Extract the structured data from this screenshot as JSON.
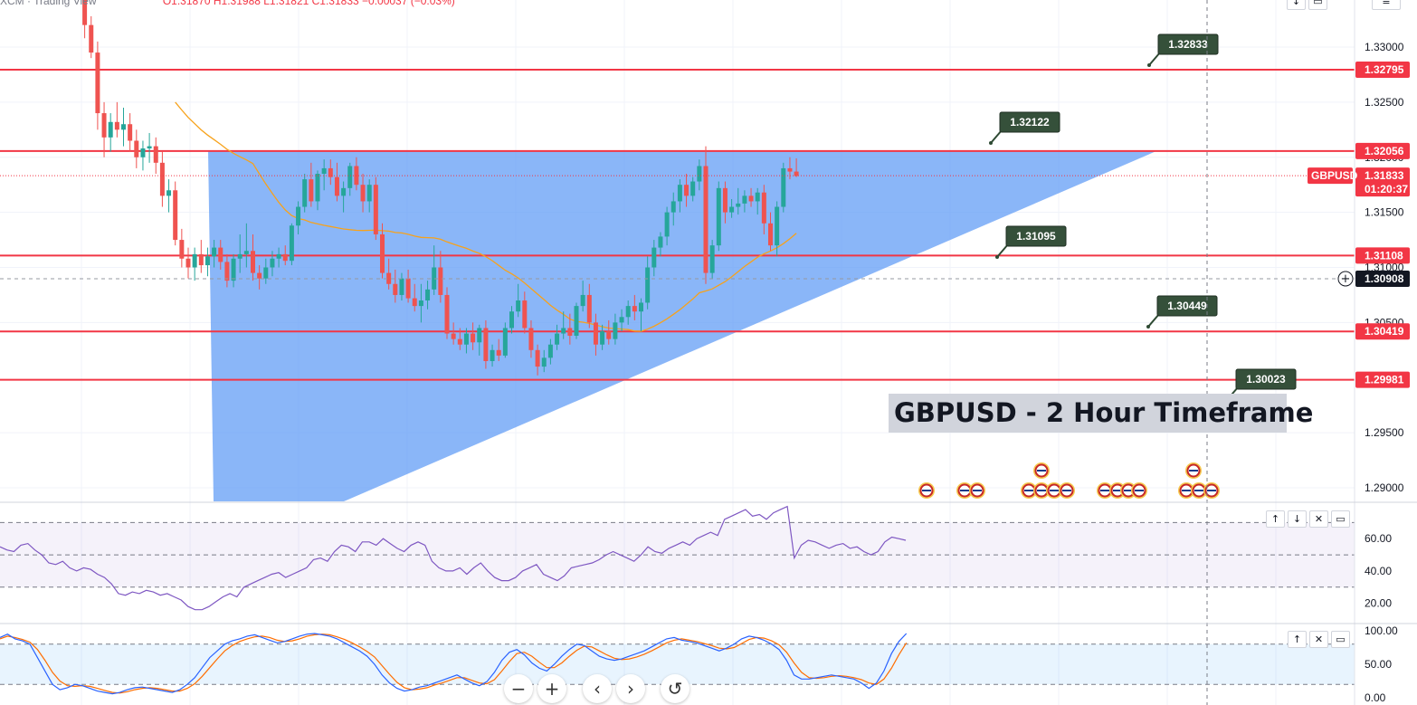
{
  "header": {
    "symbol_text": "XCM · Trading View",
    "ohlc_text": "O1.31870 H1.31988 L1.31821 C1.31833 −0.00037 (−0.03%)"
  },
  "chart_data": {
    "type": "candlestick",
    "symbol": "GBPUSD",
    "annotation": "GBPUSD - 2  Hour Timeframe",
    "price_axis": {
      "range": [
        1.2885,
        1.338
      ],
      "ticks": [
        "1.33000",
        "1.32500",
        "1.32000",
        "1.31500",
        "1.31000",
        "1.30500",
        "1.29500",
        "1.29000"
      ]
    },
    "current_price": {
      "value": 1.31833,
      "label": "1.31833",
      "countdown": "01:20:37",
      "symbol_tag": "GBPUSD"
    },
    "crosshair_price": {
      "value": 1.30908,
      "label": "1.30908"
    },
    "horizontal_levels": [
      {
        "value": 1.32795,
        "label": "1.32795"
      },
      {
        "value": 1.32056,
        "label": "1.32056"
      },
      {
        "value": 1.31108,
        "label": "1.31108"
      },
      {
        "value": 1.30419,
        "label": "1.30419"
      },
      {
        "value": 1.29981,
        "label": "1.29981"
      }
    ],
    "callouts": [
      {
        "label": "1.32833",
        "value": 1.32833
      },
      {
        "label": "1.32122",
        "value": 1.32122
      },
      {
        "label": "1.31095",
        "value": 1.31095
      },
      {
        "label": "1.30449",
        "value": 1.30449
      },
      {
        "label": "1.30023",
        "value": 1.30023
      }
    ],
    "pattern": "ascending-triangle",
    "moving_average": "orange line",
    "candles": [
      [
        1.339,
        1.3402,
        1.3372,
        1.338
      ],
      [
        1.338,
        1.3398,
        1.3368,
        1.3385
      ],
      [
        1.3385,
        1.34,
        1.337,
        1.3375
      ],
      [
        1.3375,
        1.3392,
        1.336,
        1.3362
      ],
      [
        1.3362,
        1.3372,
        1.3308,
        1.332
      ],
      [
        1.332,
        1.3328,
        1.329,
        1.3295
      ],
      [
        1.3295,
        1.3305,
        1.3225,
        1.324
      ],
      [
        1.324,
        1.325,
        1.32,
        1.3218
      ],
      [
        1.3218,
        1.324,
        1.3205,
        1.3232
      ],
      [
        1.3232,
        1.325,
        1.3218,
        1.3225
      ],
      [
        1.3225,
        1.3245,
        1.321,
        1.323
      ],
      [
        1.323,
        1.324,
        1.3205,
        1.3215
      ],
      [
        1.3215,
        1.3225,
        1.319,
        1.32
      ],
      [
        1.32,
        1.3215,
        1.3188,
        1.3208
      ],
      [
        1.3208,
        1.3222,
        1.3195,
        1.321
      ],
      [
        1.321,
        1.3218,
        1.3185,
        1.3195
      ],
      [
        1.3195,
        1.3205,
        1.3155,
        1.3165
      ],
      [
        1.3165,
        1.318,
        1.315,
        1.317
      ],
      [
        1.317,
        1.3178,
        1.312,
        1.3125
      ],
      [
        1.3125,
        1.3135,
        1.31,
        1.3108
      ],
      [
        1.3108,
        1.3118,
        1.309,
        1.31
      ],
      [
        1.31,
        1.3118,
        1.3088,
        1.3112
      ],
      [
        1.3112,
        1.3125,
        1.3095,
        1.3102
      ],
      [
        1.3102,
        1.3118,
        1.3092,
        1.311
      ],
      [
        1.311,
        1.3125,
        1.31,
        1.3118
      ],
      [
        1.3118,
        1.3125,
        1.3098,
        1.3105
      ],
      [
        1.3105,
        1.3112,
        1.3082,
        1.3088
      ],
      [
        1.3088,
        1.3112,
        1.3082,
        1.3108
      ],
      [
        1.3108,
        1.313,
        1.3095,
        1.3112
      ],
      [
        1.3112,
        1.314,
        1.31,
        1.3115
      ],
      [
        1.3115,
        1.313,
        1.3088,
        1.3095
      ],
      [
        1.3095,
        1.3102,
        1.308,
        1.309
      ],
      [
        1.309,
        1.3108,
        1.3085,
        1.31
      ],
      [
        1.31,
        1.3115,
        1.3092,
        1.3108
      ],
      [
        1.3108,
        1.3118,
        1.31,
        1.3112
      ],
      [
        1.3112,
        1.312,
        1.3102,
        1.3106
      ],
      [
        1.3106,
        1.314,
        1.3102,
        1.3138
      ],
      [
        1.3138,
        1.316,
        1.313,
        1.3155
      ],
      [
        1.3155,
        1.3185,
        1.315,
        1.318
      ],
      [
        1.318,
        1.3195,
        1.3155,
        1.316
      ],
      [
        1.316,
        1.3188,
        1.3152,
        1.3185
      ],
      [
        1.3185,
        1.3198,
        1.317,
        1.319
      ],
      [
        1.319,
        1.3198,
        1.3175,
        1.3182
      ],
      [
        1.3182,
        1.3195,
        1.316,
        1.3165
      ],
      [
        1.3165,
        1.3178,
        1.315,
        1.3172
      ],
      [
        1.3172,
        1.3195,
        1.3165,
        1.3192
      ],
      [
        1.3192,
        1.32,
        1.317,
        1.3175
      ],
      [
        1.3175,
        1.3185,
        1.315,
        1.316
      ],
      [
        1.316,
        1.318,
        1.315,
        1.3175
      ],
      [
        1.3175,
        1.3182,
        1.3125,
        1.313
      ],
      [
        1.313,
        1.314,
        1.309,
        1.3095
      ],
      [
        1.3095,
        1.3108,
        1.308,
        1.3085
      ],
      [
        1.3085,
        1.3098,
        1.3068,
        1.3075
      ],
      [
        1.3075,
        1.3095,
        1.307,
        1.309
      ],
      [
        1.309,
        1.3098,
        1.3068,
        1.3072
      ],
      [
        1.3072,
        1.3085,
        1.306,
        1.3065
      ],
      [
        1.3065,
        1.3085,
        1.305,
        1.307
      ],
      [
        1.307,
        1.3088,
        1.3062,
        1.308
      ],
      [
        1.308,
        1.312,
        1.3075,
        1.31
      ],
      [
        1.31,
        1.3115,
        1.3068,
        1.3075
      ],
      [
        1.3075,
        1.3082,
        1.3035,
        1.304
      ],
      [
        1.304,
        1.305,
        1.303,
        1.3035
      ],
      [
        1.3035,
        1.3045,
        1.3025,
        1.303
      ],
      [
        1.303,
        1.3045,
        1.3022,
        1.304
      ],
      [
        1.304,
        1.305,
        1.3025,
        1.3032
      ],
      [
        1.3032,
        1.3048,
        1.302,
        1.3045
      ],
      [
        1.3045,
        1.3052,
        1.3008,
        1.3015
      ],
      [
        1.3015,
        1.303,
        1.301,
        1.3025
      ],
      [
        1.3025,
        1.3035,
        1.3015,
        1.302
      ],
      [
        1.302,
        1.305,
        1.3018,
        1.3045
      ],
      [
        1.3045,
        1.3065,
        1.304,
        1.306
      ],
      [
        1.306,
        1.3085,
        1.3055,
        1.307
      ],
      [
        1.307,
        1.3078,
        1.304,
        1.3045
      ],
      [
        1.3045,
        1.3052,
        1.3018,
        1.3025
      ],
      [
        1.3025,
        1.303,
        1.3002,
        1.301
      ],
      [
        1.301,
        1.3025,
        1.3005,
        1.3018
      ],
      [
        1.3018,
        1.3035,
        1.3012,
        1.303
      ],
      [
        1.303,
        1.3048,
        1.3025,
        1.304
      ],
      [
        1.304,
        1.306,
        1.3035,
        1.3045
      ],
      [
        1.3045,
        1.3058,
        1.303,
        1.3038
      ],
      [
        1.3038,
        1.3068,
        1.3035,
        1.3065
      ],
      [
        1.3065,
        1.3088,
        1.306,
        1.3075
      ],
      [
        1.3075,
        1.3085,
        1.3045,
        1.305
      ],
      [
        1.305,
        1.3058,
        1.302,
        1.303
      ],
      [
        1.303,
        1.3048,
        1.3025,
        1.3042
      ],
      [
        1.3042,
        1.3052,
        1.303,
        1.3035
      ],
      [
        1.3035,
        1.3058,
        1.303,
        1.305
      ],
      [
        1.305,
        1.3062,
        1.3042,
        1.3055
      ],
      [
        1.3055,
        1.307,
        1.3048,
        1.3065
      ],
      [
        1.3065,
        1.3075,
        1.3052,
        1.306
      ],
      [
        1.306,
        1.3072,
        1.3042,
        1.3068
      ],
      [
        1.3068,
        1.311,
        1.3062,
        1.31
      ],
      [
        1.31,
        1.3125,
        1.3092,
        1.3118
      ],
      [
        1.3118,
        1.3132,
        1.311,
        1.3128
      ],
      [
        1.3128,
        1.3155,
        1.312,
        1.315
      ],
      [
        1.315,
        1.3168,
        1.3138,
        1.316
      ],
      [
        1.316,
        1.318,
        1.315,
        1.3175
      ],
      [
        1.3175,
        1.3185,
        1.3155,
        1.3165
      ],
      [
        1.3165,
        1.3182,
        1.316,
        1.3178
      ],
      [
        1.3178,
        1.3198,
        1.317,
        1.3192
      ],
      [
        1.3192,
        1.321,
        1.3085,
        1.3095
      ],
      [
        1.3095,
        1.3125,
        1.309,
        1.312
      ],
      [
        1.312,
        1.3178,
        1.3115,
        1.3172
      ],
      [
        1.3172,
        1.3178,
        1.314,
        1.315
      ],
      [
        1.315,
        1.3162,
        1.3145,
        1.3155
      ],
      [
        1.3155,
        1.3172,
        1.3148,
        1.3158
      ],
      [
        1.3158,
        1.317,
        1.315,
        1.3165
      ],
      [
        1.3165,
        1.3172,
        1.3155,
        1.316
      ],
      [
        1.316,
        1.3172,
        1.3148,
        1.3168
      ],
      [
        1.3168,
        1.3175,
        1.313,
        1.314
      ],
      [
        1.314,
        1.315,
        1.3115,
        1.312
      ],
      [
        1.312,
        1.316,
        1.311,
        1.3155
      ],
      [
        1.3155,
        1.3195,
        1.315,
        1.319
      ],
      [
        1.319,
        1.32,
        1.318,
        1.3187
      ],
      [
        1.3187,
        1.3199,
        1.3182,
        1.3183
      ]
    ]
  },
  "rsi": {
    "ticks": [
      "60.00",
      "40.00",
      "20.00"
    ],
    "range": [
      8,
      82
    ],
    "upper": 70,
    "lower": 30,
    "values": [
      55,
      53,
      52,
      56,
      57,
      53,
      50,
      45,
      44,
      46,
      42,
      40,
      42,
      41,
      38,
      36,
      32,
      26,
      25,
      27,
      26,
      28,
      27,
      25,
      26,
      24,
      22,
      18,
      16,
      16,
      18,
      21,
      24,
      26,
      24,
      30,
      32,
      34,
      36,
      38,
      39,
      36,
      38,
      40,
      42,
      47,
      48,
      46,
      52,
      56,
      55,
      52,
      58,
      58,
      56,
      60,
      57,
      54,
      52,
      56,
      58,
      56,
      46,
      42,
      40,
      40,
      42,
      38,
      42,
      45,
      40,
      36,
      34,
      34,
      36,
      40,
      42,
      44,
      38,
      36,
      34,
      37,
      42,
      43,
      44,
      45,
      47,
      50,
      52,
      50,
      48,
      46,
      50,
      55,
      52,
      51,
      54,
      56,
      58,
      56,
      60,
      62,
      64,
      62,
      72,
      74,
      76,
      78,
      74,
      75,
      72,
      76,
      78,
      80,
      48,
      56,
      59,
      58,
      56,
      54,
      56,
      57,
      54,
      55,
      52,
      50,
      52,
      58,
      61,
      60,
      59
    ]
  },
  "stoch": {
    "ticks": [
      "100.00",
      "50.00",
      "0.00"
    ],
    "range": [
      0,
      105
    ],
    "upper": 80,
    "lower": 20,
    "k": [
      90,
      95,
      88,
      85,
      80,
      60,
      40,
      20,
      12,
      15,
      20,
      18,
      14,
      10,
      8,
      6,
      8,
      12,
      15,
      16,
      14,
      12,
      10,
      8,
      12,
      20,
      30,
      45,
      60,
      70,
      80,
      85,
      88,
      92,
      94,
      90,
      86,
      82,
      84,
      88,
      92,
      95,
      96,
      94,
      92,
      88,
      82,
      76,
      70,
      62,
      50,
      34,
      22,
      14,
      10,
      12,
      16,
      18,
      22,
      26,
      30,
      34,
      28,
      22,
      18,
      24,
      38,
      56,
      68,
      72,
      64,
      52,
      44,
      40,
      50,
      62,
      72,
      80,
      78,
      70,
      62,
      58,
      56,
      58,
      62,
      66,
      70,
      76,
      82,
      88,
      90,
      86,
      84,
      82,
      78,
      74,
      70,
      74,
      80,
      88,
      92,
      90,
      86,
      80,
      72,
      56,
      34,
      28,
      28,
      30,
      32,
      34,
      32,
      30,
      28,
      22,
      14,
      22,
      40,
      66,
      84,
      96
    ],
    "d": [
      88,
      92,
      90,
      87,
      83,
      72,
      56,
      38,
      25,
      18,
      17,
      18,
      17,
      14,
      11,
      8,
      7,
      9,
      12,
      14,
      15,
      14,
      12,
      10,
      10,
      14,
      21,
      32,
      45,
      58,
      70,
      78,
      84,
      88,
      91,
      92,
      90,
      86,
      84,
      85,
      88,
      92,
      94,
      95,
      94,
      91,
      87,
      82,
      76,
      69,
      61,
      48,
      35,
      23,
      15,
      12,
      13,
      15,
      19,
      22,
      26,
      30,
      30,
      26,
      22,
      21,
      27,
      40,
      54,
      66,
      68,
      62,
      53,
      45,
      45,
      52,
      62,
      71,
      77,
      76,
      70,
      64,
      59,
      57,
      58,
      61,
      65,
      70,
      76,
      82,
      86,
      88,
      86,
      84,
      81,
      78,
      74,
      73,
      75,
      81,
      87,
      90,
      89,
      85,
      79,
      68,
      52,
      38,
      30,
      29,
      30,
      32,
      33,
      32,
      30,
      27,
      22,
      20,
      28,
      44,
      64,
      82
    ]
  }
}
